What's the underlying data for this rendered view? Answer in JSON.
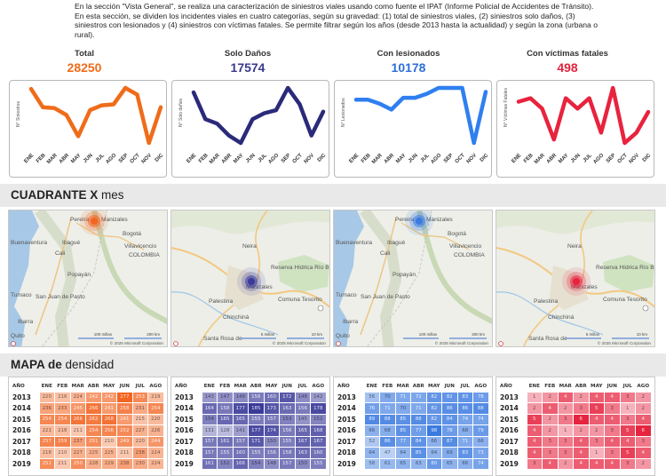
{
  "intro": {
    "text": "En la sección \"Vista General\", se realiza una caracterización de siniestros viales usando como fuente el IPAT (Informe Policial de Accidentes de Tránsito). En esta sección, se dividen los incidentes viales en cuatro categorías, según su gravedad: (1) total de siniestros viales, (2) siniestros solo daños, (3) siniestros con lesionados y (4) siniestros con víctimas fatales. Se permite filtrar según los años (desde 2013 hasta la actualidad) y según la zona (urbana o rural)."
  },
  "kpis": [
    {
      "label": "Total",
      "value": "28250",
      "color": "#ef6c1a"
    },
    {
      "label": "Solo Daños",
      "value": "17574",
      "color": "#3b3a8c"
    },
    {
      "label": "Con lesionados",
      "value": "10178",
      "color": "#2e6fd6"
    },
    {
      "label": "Con víctimas fatales",
      "value": "498",
      "color": "#e0233e"
    }
  ],
  "chart_data": [
    {
      "type": "line",
      "ylabel": "N° Siniestros",
      "color": "#ef6c1a",
      "categories": [
        "ENE",
        "FEB",
        "MAR",
        "ABR",
        "MAY",
        "JUN",
        "JUL",
        "AGO",
        "SEP",
        "OCT",
        "NOV",
        "DIC"
      ],
      "values": [
        2480,
        2290,
        2280,
        2210,
        1990,
        2260,
        2310,
        2320,
        2490,
        2420,
        1920,
        2290
      ]
    },
    {
      "type": "line",
      "ylabel": "N° Solo daños",
      "color": "#2b2a7a",
      "categories": [
        "ENE",
        "FEB",
        "MAR",
        "ABR",
        "MAY",
        "JUN",
        "JUL",
        "AGO",
        "SEP",
        "OCT",
        "NOV",
        "DIC"
      ],
      "values": [
        1580,
        1400,
        1370,
        1290,
        1240,
        1400,
        1440,
        1460,
        1610,
        1500,
        1290,
        1450
      ]
    },
    {
      "type": "line",
      "ylabel": "N° Lesionados",
      "color": "#2f7ff0",
      "categories": [
        "ENE",
        "FEB",
        "MAR",
        "ABR",
        "MAY",
        "JUN",
        "JUL",
        "AGO",
        "SEP",
        "OCT",
        "NOV",
        "DIC"
      ],
      "values": [
        880,
        880,
        860,
        830,
        890,
        890,
        910,
        940,
        940,
        940,
        660,
        920
      ]
    },
    {
      "type": "line",
      "ylabel": "N° Víctimas Fatales",
      "color": "#e8233e",
      "categories": [
        "ENE",
        "FEB",
        "MAR",
        "ABR",
        "MAY",
        "JUN",
        "JUL",
        "AGO",
        "SEP",
        "OCT",
        "NOV",
        "DIC"
      ],
      "values": [
        46,
        47,
        44,
        35,
        47,
        44,
        47,
        37,
        50,
        34,
        37,
        43
      ]
    }
  ],
  "section1": {
    "bold": "CUADRANTE X",
    "rest": " mes"
  },
  "section2": {
    "bold": "MAPA de",
    "rest": " densidad"
  },
  "maps": {
    "wide_labels": [
      "Pereira",
      "Manizales",
      "Bogotá",
      "Buenaventura",
      "Ibagué",
      "Villavicencio",
      "Cali",
      "COLOMBIA",
      "Popayán",
      "Tumaco",
      "San Juan de Pasto",
      "Ibarra",
      "Quito"
    ],
    "zoom_labels": [
      "Neira",
      "Reserva Hídrica Río Blanco",
      "Palestina",
      "Manizales",
      "Comuna Tesorito",
      "Chinchiná",
      "Santa Rosa de"
    ],
    "scale_wide": [
      "100 millas",
      "200 km"
    ],
    "scale_zoom": [
      "5 millas",
      "10 km"
    ],
    "copyright": "© 2025 Microsoft Corporation",
    "colors": [
      "#f26522",
      "#3a3a9a",
      "#3b7ae0",
      "#e6243f"
    ]
  },
  "tables": {
    "headers": [
      "AÑO",
      "ENE",
      "FEB",
      "MAR",
      "ABR",
      "MAY",
      "JUN",
      "JUL",
      "AGO"
    ],
    "years": [
      "2013",
      "2014",
      "2015",
      "2016",
      "2017",
      "2018",
      "2019"
    ],
    "t1": [
      [
        "220",
        "216",
        "224",
        "242",
        "242",
        "277",
        "253",
        "219"
      ],
      [
        "236",
        "233",
        "245",
        "266",
        "241",
        "258",
        "231",
        "254"
      ],
      [
        "254",
        "254",
        "266",
        "262",
        "268",
        "241",
        "215",
        "220"
      ],
      [
        "221",
        "218",
        "211",
        "254",
        "256",
        "252",
        "227",
        "226"
      ],
      [
        "257",
        "259",
        "237",
        "251",
        "210",
        "249",
        "220",
        "244"
      ],
      [
        "218",
        "210",
        "227",
        "225",
        "225",
        "211",
        "238",
        "224"
      ],
      [
        "251",
        "211",
        "250",
        "228",
        "229",
        "238",
        "230",
        "224"
      ]
    ],
    "t2": [
      [
        "143",
        "147",
        "149",
        "156",
        "160",
        "172",
        "148",
        "142"
      ],
      [
        "164",
        "158",
        "177",
        "185",
        "173",
        "163",
        "156",
        "178"
      ],
      [
        "154",
        "165",
        "165",
        "155",
        "157",
        "153",
        "145",
        "152"
      ],
      [
        "131",
        "128",
        "141",
        "177",
        "174",
        "156",
        "165",
        "168"
      ],
      [
        "157",
        "161",
        "157",
        "171",
        "150",
        "155",
        "167",
        "167"
      ],
      [
        "157",
        "155",
        "160",
        "155",
        "156",
        "158",
        "163",
        "160"
      ],
      [
        "161",
        "152",
        "166",
        "154",
        "148",
        "157",
        "150",
        "155"
      ]
    ],
    "t3": [
      [
        "56",
        "70",
        "71",
        "72",
        "82",
        "82",
        "83",
        "78"
      ],
      [
        "76",
        "71",
        "70",
        "71",
        "82",
        "86",
        "86",
        "88"
      ],
      [
        "89",
        "88",
        "85",
        "88",
        "82",
        "84",
        "74",
        "74"
      ],
      [
        "66",
        "68",
        "85",
        "77",
        "98",
        "78",
        "68",
        "79"
      ],
      [
        "52",
        "86",
        "77",
        "84",
        "66",
        "87",
        "71",
        "66"
      ],
      [
        "64",
        "47",
        "64",
        "85",
        "64",
        "69",
        "83",
        "73"
      ],
      [
        "58",
        "61",
        "65",
        "63",
        "80",
        "65",
        "66",
        "74"
      ]
    ],
    "t4": [
      [
        "1",
        "2",
        "4",
        "2",
        "4",
        "4",
        "3",
        "2"
      ],
      [
        "2",
        "4",
        "2",
        "3",
        "5",
        "3",
        "1",
        "2"
      ],
      [
        "5",
        "2",
        "3",
        "6",
        "4",
        "4",
        "3",
        "4"
      ],
      [
        "4",
        "2",
        "1",
        "2",
        "2",
        "3",
        "5",
        "6"
      ],
      [
        "4",
        "3",
        "3",
        "4",
        "3",
        "4",
        "4",
        "3"
      ],
      [
        "4",
        "3",
        "3",
        "4",
        "1",
        "3",
        "5",
        "4"
      ],
      [
        "3",
        "4",
        "2",
        "4",
        "4",
        "4",
        "3",
        "2"
      ]
    ]
  }
}
